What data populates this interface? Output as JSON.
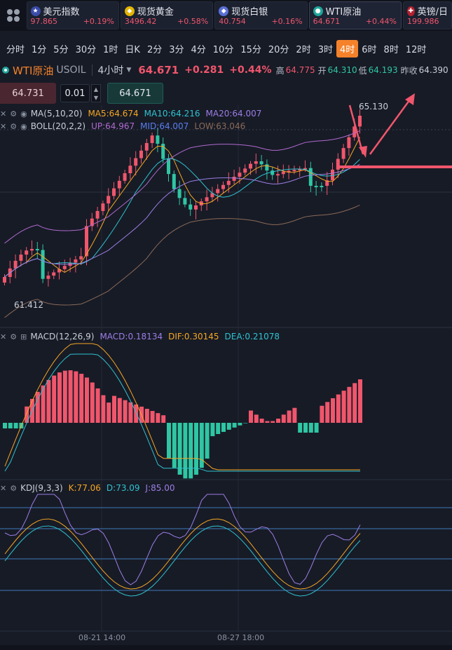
{
  "tickers": [
    {
      "name": "美元指数",
      "price": "97.865",
      "change": "+0.19%",
      "icon": "us-flag-icon",
      "color": "#c8102e"
    },
    {
      "name": "现货黄金",
      "price": "3496.42",
      "change": "+0.58%",
      "icon": "gold-icon",
      "color": "#e2b400"
    },
    {
      "name": "现货白银",
      "price": "40.754",
      "change": "+0.16%",
      "icon": "silver-icon",
      "color": "#5a6fd6"
    },
    {
      "name": "WTI原油",
      "price": "64.671",
      "change": "+0.44%",
      "icon": "oil-icon",
      "color": "#1fa59a"
    },
    {
      "name": "英镑/日",
      "price": "199.986",
      "change": "",
      "icon": "uk-flag-icon",
      "color": "#b3202f"
    }
  ],
  "periods": [
    "分时",
    "1分",
    "5分",
    "30分",
    "1时",
    "日K",
    "2分",
    "3分",
    "4分",
    "10分",
    "15分",
    "20分",
    "2时",
    "3时",
    "4时",
    "6时",
    "8时",
    "12时"
  ],
  "active_period": "4时",
  "info": {
    "symbol": "WTI原油",
    "code": "USOIL",
    "timeframe": "4小时",
    "price": "64.671",
    "change": "+0.281",
    "change_pct": "+0.44%",
    "high_label": "高",
    "high": "64.775",
    "open_label": "开",
    "open": "64.310",
    "low_label": "低",
    "low": "64.193",
    "prev_label": "昨收",
    "prev": "64.390"
  },
  "order": {
    "sell_price": "64.731",
    "quantity": "0.01",
    "buy_price": "64.671"
  },
  "ma_legend": {
    "name": "MA(5,10,20)",
    "ma5": "MA5:64.674",
    "ma10": "MA10:64.216",
    "ma20": "MA20:64.007"
  },
  "boll_legend": {
    "name": "BOLL(20,2,2)",
    "up": "UP:64.967",
    "mid": "MID:64.007",
    "low": "LOW:63.046"
  },
  "macd_legend": {
    "name": "MACD(12,26,9)",
    "macd": "MACD:0.18134",
    "dif": "DIF:0.30145",
    "dea": "DEA:0.21078"
  },
  "kdj_legend": {
    "name": "KDJ(9,3,3)",
    "k": "K:77.06",
    "d": "D:73.09",
    "j": "J:85.00"
  },
  "chart_marks": {
    "high": "65.130",
    "low": "61.412"
  },
  "x_labels": [
    "08-21 14:00",
    "08-27 18:00"
  ],
  "colors": {
    "up": "#f0566c",
    "down": "#2fc6a4",
    "accent": "#f5822a",
    "ma5": "#f5a623",
    "ma10": "#2ec3d0",
    "ma20": "#9d7ee6",
    "boll": "#b06ad0"
  },
  "chart_data": {
    "type": "candlestick",
    "y_range_main": [
      61.0,
      65.5
    ],
    "ohlc_recent": {
      "open": 64.31,
      "high": 64.775,
      "low": 64.193,
      "close": 64.671
    },
    "macd": {
      "macd": 0.18134,
      "dif": 0.30145,
      "dea": 0.21078
    },
    "kdj": {
      "k": 77.06,
      "d": 73.09,
      "j": 85.0
    }
  }
}
